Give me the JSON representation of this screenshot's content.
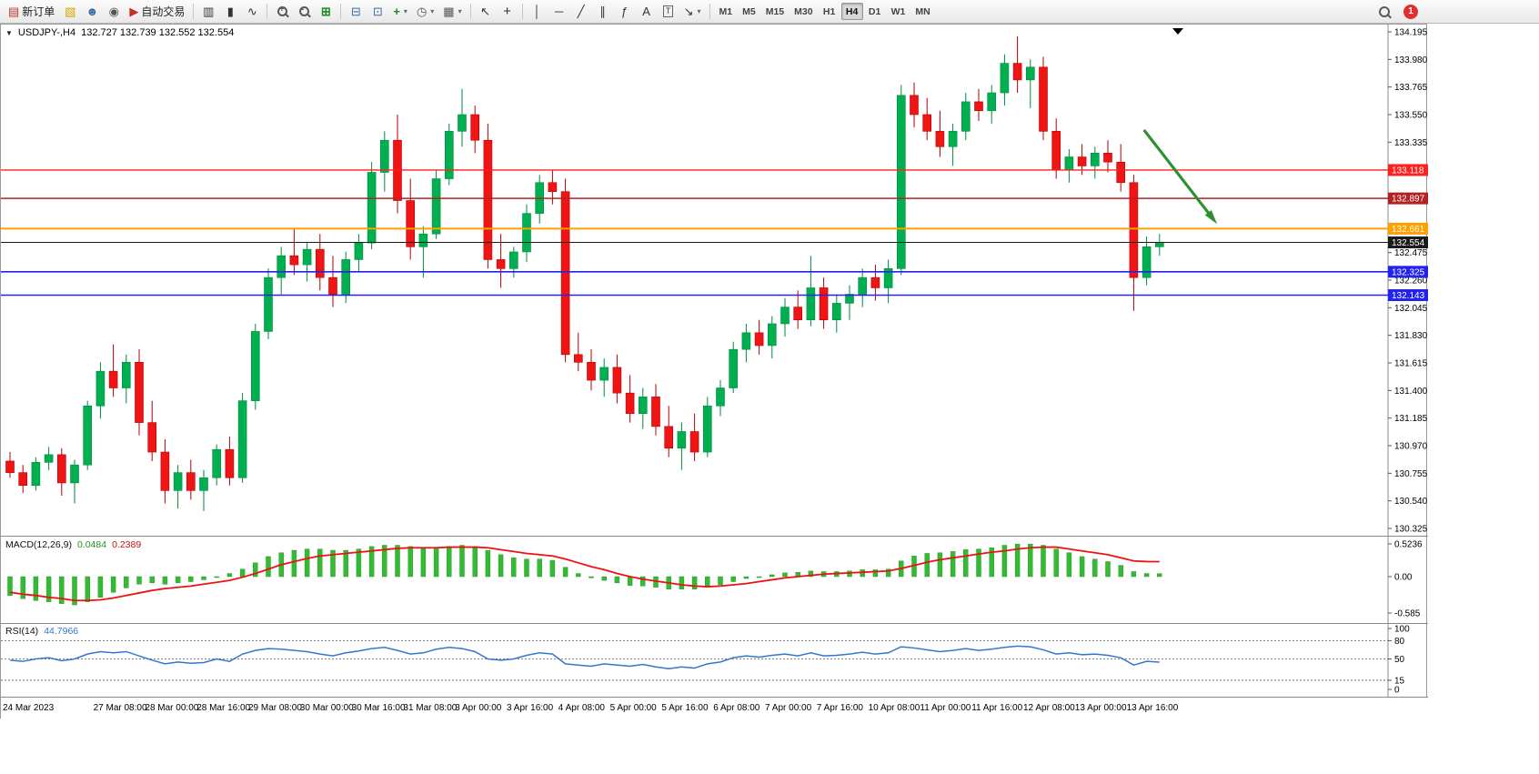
{
  "toolbar": {
    "new_order_label": "新订单",
    "auto_trading_label": "自动交易",
    "timeframes": [
      "M1",
      "M5",
      "M15",
      "M30",
      "H1",
      "H4",
      "D1",
      "W1",
      "MN"
    ],
    "active_timeframe": "H4",
    "notification_count": "1"
  },
  "icons": {
    "new_order": "▤",
    "new_chart": "▧",
    "profiles": "☻",
    "community": "◉",
    "auto_trading": "▶",
    "bars": "▥",
    "candles": "▮",
    "line_chart": "∿",
    "tile": "⊞",
    "window_a": "⊟",
    "window_b": "⊡",
    "indicators": "+",
    "periods": "◷",
    "templates": "▦",
    "cursor": "↖",
    "crosshair": "+",
    "vline": "│",
    "hline": "─",
    "trendline": "╱",
    "channel": "∥",
    "fibonacci": "ƒ",
    "text": "A",
    "label": "T",
    "arrows": "↘",
    "caret": "▾",
    "shift_marker": "▼"
  },
  "chart": {
    "symbol": "USDJPY-,H4",
    "ohlc": "132.727 132.739 132.552 132.554",
    "macd_label": "MACD(12,26,9)",
    "macd_value": "0.0484",
    "macd_signal_value": "0.2389",
    "rsi_label": "RSI(14)",
    "rsi_value": "44.7966"
  },
  "chart_data": {
    "type": "candlestick",
    "symbol": "USDJPY-",
    "timeframe": "H4",
    "title": "USDJPY-,H4 132.727 132.739 132.552 132.554",
    "ylim": [
      130.325,
      134.195
    ],
    "up_color": "#00b050",
    "down_color": "#f01414",
    "up_stroke": "#008a3c",
    "down_stroke": "#b40000",
    "y_ticks": [
      "134.195",
      "133.980",
      "133.765",
      "133.550",
      "133.335",
      "132.475",
      "132.260",
      "132.045",
      "131.830",
      "131.615",
      "131.400",
      "131.185",
      "130.970",
      "130.755",
      "130.540",
      "130.325"
    ],
    "hlines": [
      {
        "price": 133.118,
        "color": "#ff2020",
        "label": "133.118",
        "width": 1.4
      },
      {
        "price": 132.897,
        "color": "#b22222",
        "label": "132.897",
        "width": 1.4
      },
      {
        "price": 132.661,
        "color": "#ffa000",
        "label": "132.661",
        "width": 2
      },
      {
        "price": 132.554,
        "color": "#1a1a1a",
        "label": "132.554",
        "width": 1
      },
      {
        "price": 132.325,
        "color": "#2222ee",
        "label": "132.325",
        "width": 1.6
      },
      {
        "price": 132.143,
        "color": "#2222ee",
        "label": "132.143",
        "width": 1.6
      }
    ],
    "arrow": {
      "from_index": 87.8,
      "from_price": 133.43,
      "to_index": 93.2,
      "to_price": 132.73,
      "color": "#2f8f2f"
    },
    "x_labels": [
      "24 Mar 2023",
      "27 Mar 08:00",
      "28 Mar 00:00",
      "28 Mar 16:00",
      "29 Mar 08:00",
      "30 Mar 00:00",
      "30 Mar 16:00",
      "31 Mar 08:00",
      "3 Apr 00:00",
      "3 Apr 16:00",
      "4 Apr 08:00",
      "5 Apr 00:00",
      "5 Apr 16:00",
      "6 Apr 08:00",
      "7 Apr 00:00",
      "7 Apr 16:00",
      "10 Apr 08:00",
      "11 Apr 00:00",
      "11 Apr 16:00",
      "12 Apr 08:00",
      "13 Apr 00:00",
      "13 Apr 16:00"
    ],
    "x_label_indices": [
      0,
      8,
      12,
      16,
      20,
      24,
      28,
      32,
      36,
      40,
      44,
      48,
      52,
      56,
      60,
      64,
      68,
      72,
      76,
      80,
      84,
      88
    ],
    "candles": [
      [
        130.85,
        130.92,
        130.72,
        130.76
      ],
      [
        130.76,
        130.82,
        130.6,
        130.66
      ],
      [
        130.66,
        130.88,
        130.62,
        130.84
      ],
      [
        130.84,
        130.96,
        130.78,
        130.9
      ],
      [
        130.9,
        130.95,
        130.58,
        130.68
      ],
      [
        130.68,
        130.86,
        130.52,
        130.82
      ],
      [
        130.82,
        131.32,
        130.78,
        131.28
      ],
      [
        131.28,
        131.62,
        131.18,
        131.55
      ],
      [
        131.55,
        131.76,
        131.35,
        131.42
      ],
      [
        131.42,
        131.68,
        131.3,
        131.62
      ],
      [
        131.62,
        131.72,
        131.05,
        131.15
      ],
      [
        131.15,
        131.32,
        130.85,
        130.92
      ],
      [
        130.92,
        131.02,
        130.52,
        130.62
      ],
      [
        130.62,
        130.82,
        130.48,
        130.76
      ],
      [
        130.76,
        130.86,
        130.55,
        130.62
      ],
      [
        130.62,
        130.78,
        130.46,
        130.72
      ],
      [
        130.72,
        130.98,
        130.66,
        130.94
      ],
      [
        130.94,
        131.04,
        130.66,
        130.72
      ],
      [
        130.72,
        131.38,
        130.68,
        131.32
      ],
      [
        131.32,
        131.92,
        131.25,
        131.86
      ],
      [
        131.86,
        132.35,
        131.8,
        132.28
      ],
      [
        132.28,
        132.52,
        132.15,
        132.45
      ],
      [
        132.45,
        132.66,
        132.3,
        132.38
      ],
      [
        132.38,
        132.55,
        132.25,
        132.5
      ],
      [
        132.5,
        132.62,
        132.18,
        132.28
      ],
      [
        132.28,
        132.45,
        132.05,
        132.15
      ],
      [
        132.15,
        132.48,
        132.08,
        132.42
      ],
      [
        132.42,
        132.62,
        132.33,
        132.55
      ],
      [
        132.55,
        133.18,
        132.5,
        133.1
      ],
      [
        133.1,
        133.42,
        132.95,
        133.35
      ],
      [
        133.35,
        133.55,
        132.78,
        132.88
      ],
      [
        132.88,
        133.05,
        132.42,
        132.52
      ],
      [
        132.52,
        132.68,
        132.28,
        132.62
      ],
      [
        132.62,
        133.12,
        132.58,
        133.05
      ],
      [
        133.05,
        133.48,
        133.0,
        133.42
      ],
      [
        133.42,
        133.75,
        133.3,
        133.55
      ],
      [
        133.55,
        133.62,
        133.25,
        133.35
      ],
      [
        133.35,
        133.48,
        132.35,
        132.42
      ],
      [
        132.42,
        132.62,
        132.2,
        132.35
      ],
      [
        132.35,
        132.52,
        132.28,
        132.48
      ],
      [
        132.48,
        132.85,
        132.4,
        132.78
      ],
      [
        132.78,
        133.08,
        132.7,
        133.02
      ],
      [
        133.02,
        133.12,
        132.85,
        132.95
      ],
      [
        132.95,
        133.05,
        131.62,
        131.68
      ],
      [
        131.68,
        131.85,
        131.55,
        131.62
      ],
      [
        131.62,
        131.72,
        131.4,
        131.48
      ],
      [
        131.48,
        131.65,
        131.35,
        131.58
      ],
      [
        131.58,
        131.68,
        131.3,
        131.38
      ],
      [
        131.38,
        131.52,
        131.15,
        131.22
      ],
      [
        131.22,
        131.42,
        131.1,
        131.35
      ],
      [
        131.35,
        131.45,
        131.05,
        131.12
      ],
      [
        131.12,
        131.28,
        130.88,
        130.95
      ],
      [
        130.95,
        131.15,
        130.78,
        131.08
      ],
      [
        131.08,
        131.22,
        130.85,
        130.92
      ],
      [
        130.92,
        131.35,
        130.88,
        131.28
      ],
      [
        131.28,
        131.48,
        131.2,
        131.42
      ],
      [
        131.42,
        131.78,
        131.38,
        131.72
      ],
      [
        131.72,
        131.92,
        131.62,
        131.85
      ],
      [
        131.85,
        131.95,
        131.68,
        131.75
      ],
      [
        131.75,
        131.98,
        131.65,
        131.92
      ],
      [
        131.92,
        132.12,
        131.82,
        132.05
      ],
      [
        132.05,
        132.18,
        131.88,
        131.95
      ],
      [
        131.95,
        132.45,
        131.9,
        132.2
      ],
      [
        132.2,
        132.28,
        131.88,
        131.95
      ],
      [
        131.95,
        132.15,
        131.85,
        132.08
      ],
      [
        132.08,
        132.22,
        131.95,
        132.15
      ],
      [
        132.15,
        132.35,
        132.05,
        132.28
      ],
      [
        132.28,
        132.38,
        132.1,
        132.2
      ],
      [
        132.2,
        132.42,
        132.08,
        132.35
      ],
      [
        132.35,
        133.78,
        132.3,
        133.7
      ],
      [
        133.7,
        133.8,
        133.45,
        133.55
      ],
      [
        133.55,
        133.68,
        133.35,
        133.42
      ],
      [
        133.42,
        133.58,
        133.22,
        133.3
      ],
      [
        133.3,
        133.48,
        133.15,
        133.42
      ],
      [
        133.42,
        133.72,
        133.35,
        133.65
      ],
      [
        133.65,
        133.75,
        133.5,
        133.58
      ],
      [
        133.58,
        133.78,
        133.48,
        133.72
      ],
      [
        133.72,
        134.02,
        133.62,
        133.95
      ],
      [
        133.95,
        134.16,
        133.72,
        133.82
      ],
      [
        133.82,
        133.98,
        133.6,
        133.92
      ],
      [
        133.92,
        134.0,
        133.35,
        133.42
      ],
      [
        133.42,
        133.52,
        133.05,
        133.12
      ],
      [
        133.12,
        133.28,
        133.02,
        133.22
      ],
      [
        133.22,
        133.32,
        133.08,
        133.15
      ],
      [
        133.15,
        133.3,
        133.05,
        133.25
      ],
      [
        133.25,
        133.35,
        133.1,
        133.18
      ],
      [
        133.18,
        133.32,
        132.95,
        133.02
      ],
      [
        133.02,
        133.08,
        132.02,
        132.28
      ],
      [
        132.28,
        132.6,
        132.22,
        132.52
      ],
      [
        132.52,
        132.62,
        132.45,
        132.554
      ]
    ],
    "macd": {
      "label": "MACD(12,26,9)",
      "value": 0.0484,
      "signal_value": 0.2389,
      "color": "#33bb33",
      "signal_color": "#ee1111",
      "scale": [
        "0.5236",
        "0.00",
        "-0.585"
      ],
      "ylim": [
        -0.585,
        0.5236
      ],
      "histogram": [
        -0.3,
        -0.35,
        -0.38,
        -0.4,
        -0.43,
        -0.45,
        -0.4,
        -0.33,
        -0.25,
        -0.18,
        -0.12,
        -0.1,
        -0.12,
        -0.1,
        -0.08,
        -0.05,
        0.0,
        0.05,
        0.12,
        0.22,
        0.32,
        0.38,
        0.42,
        0.44,
        0.44,
        0.42,
        0.42,
        0.44,
        0.48,
        0.5,
        0.5,
        0.48,
        0.45,
        0.46,
        0.48,
        0.5,
        0.48,
        0.42,
        0.35,
        0.3,
        0.28,
        0.28,
        0.26,
        0.15,
        0.05,
        -0.02,
        -0.06,
        -0.1,
        -0.14,
        -0.15,
        -0.17,
        -0.2,
        -0.2,
        -0.2,
        -0.17,
        -0.13,
        -0.08,
        -0.03,
        0.0,
        0.03,
        0.06,
        0.07,
        0.09,
        0.08,
        0.08,
        0.09,
        0.11,
        0.11,
        0.12,
        0.25,
        0.33,
        0.37,
        0.38,
        0.4,
        0.43,
        0.44,
        0.46,
        0.5,
        0.52,
        0.52,
        0.5,
        0.44,
        0.38,
        0.32,
        0.28,
        0.24,
        0.18,
        0.08,
        0.05,
        0.0484
      ],
      "signal": [
        -0.25,
        -0.28,
        -0.3,
        -0.33,
        -0.35,
        -0.38,
        -0.38,
        -0.37,
        -0.34,
        -0.3,
        -0.26,
        -0.22,
        -0.19,
        -0.17,
        -0.15,
        -0.12,
        -0.09,
        -0.06,
        -0.01,
        0.05,
        0.12,
        0.19,
        0.24,
        0.29,
        0.33,
        0.35,
        0.37,
        0.39,
        0.41,
        0.43,
        0.45,
        0.46,
        0.46,
        0.46,
        0.47,
        0.47,
        0.47,
        0.46,
        0.43,
        0.4,
        0.37,
        0.35,
        0.33,
        0.28,
        0.22,
        0.16,
        0.11,
        0.05,
        0.0,
        -0.04,
        -0.07,
        -0.1,
        -0.13,
        -0.15,
        -0.16,
        -0.15,
        -0.13,
        -0.11,
        -0.08,
        -0.05,
        -0.02,
        0.0,
        0.02,
        0.04,
        0.05,
        0.06,
        0.07,
        0.08,
        0.09,
        0.13,
        0.18,
        0.23,
        0.27,
        0.3,
        0.33,
        0.36,
        0.39,
        0.41,
        0.44,
        0.46,
        0.47,
        0.47,
        0.44,
        0.41,
        0.38,
        0.35,
        0.3,
        0.25,
        0.24,
        0.2389
      ]
    },
    "rsi": {
      "label": "RSI(14)",
      "value": 44.7966,
      "color": "#3377cc",
      "levels": [
        80,
        50,
        15
      ],
      "scale_labels": [
        "100",
        "80",
        "50",
        "15",
        "0"
      ],
      "ylim": [
        0,
        100
      ],
      "values": [
        48,
        46,
        50,
        52,
        47,
        50,
        58,
        62,
        60,
        62,
        55,
        48,
        42,
        45,
        43,
        44,
        50,
        46,
        58,
        64,
        67,
        66,
        64,
        62,
        58,
        55,
        60,
        63,
        67,
        69,
        64,
        58,
        60,
        66,
        69,
        67,
        62,
        50,
        48,
        50,
        56,
        60,
        58,
        42,
        40,
        38,
        42,
        40,
        38,
        41,
        37,
        34,
        37,
        35,
        42,
        45,
        52,
        55,
        53,
        56,
        58,
        55,
        60,
        55,
        56,
        58,
        61,
        58,
        60,
        70,
        68,
        65,
        62,
        64,
        67,
        64,
        66,
        69,
        71,
        70,
        65,
        58,
        60,
        57,
        58,
        56,
        52,
        40,
        46,
        44.7966
      ]
    }
  }
}
